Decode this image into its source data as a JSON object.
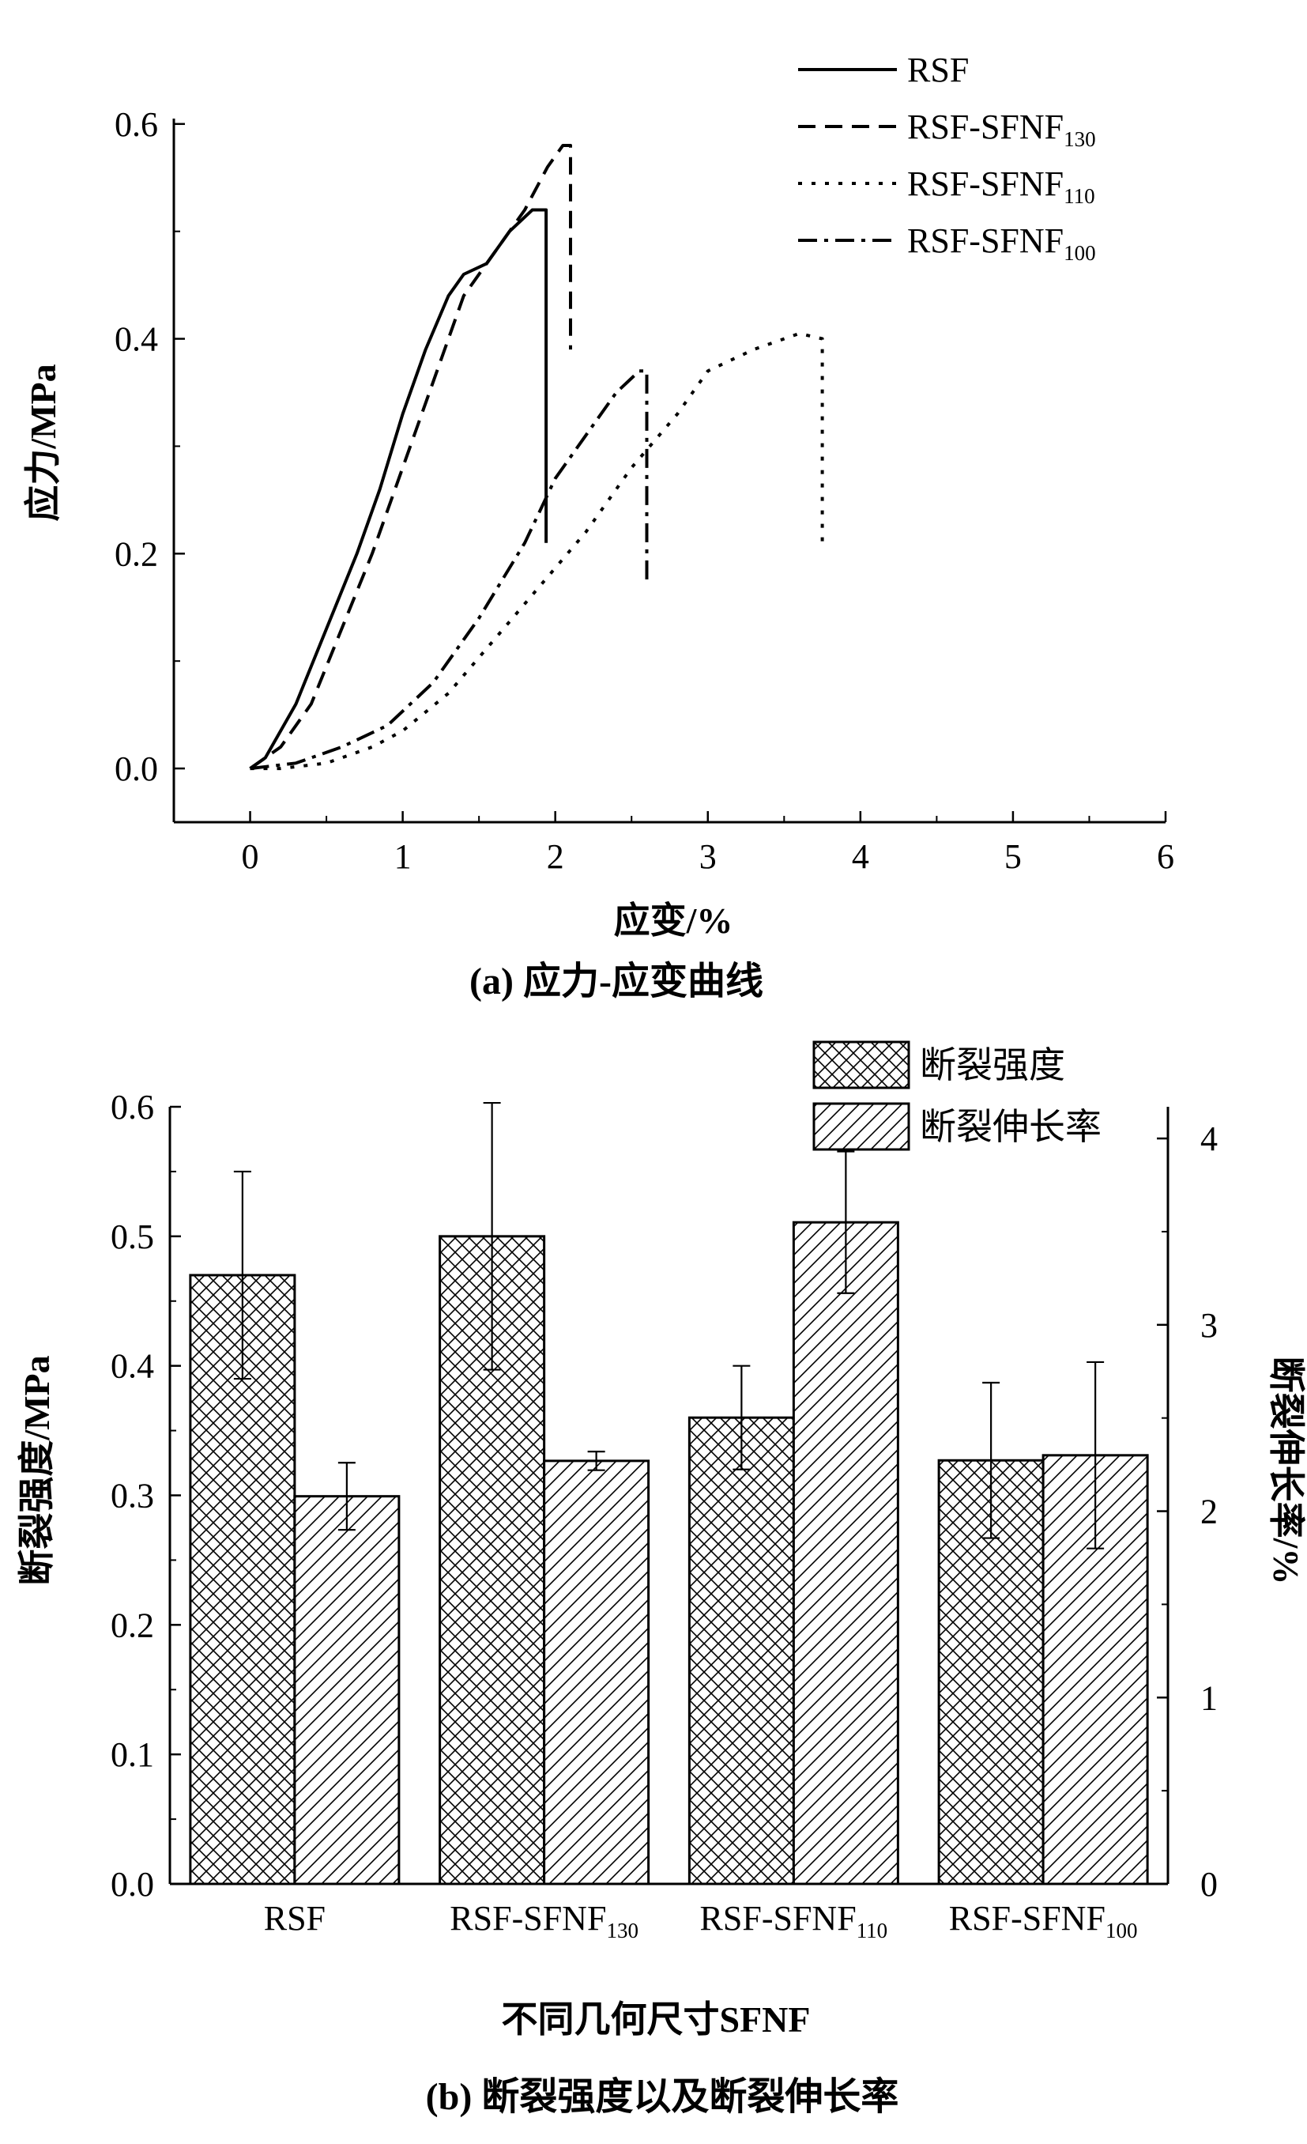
{
  "chart_data": [
    {
      "type": "line",
      "title": "(a)  应力-应变曲线",
      "xlabel": "应变/%",
      "ylabel": "应力/MPa",
      "xlim": [
        -0.5,
        6
      ],
      "ylim": [
        -0.05,
        0.605
      ],
      "xticks": [
        "0",
        "1",
        "2",
        "3",
        "4",
        "5",
        "6"
      ],
      "yticks": [
        "0.0",
        "0.2",
        "0.4",
        "0.6"
      ],
      "legend_position": "top-right",
      "series": [
        {
          "name": "RSF",
          "dash": "solid",
          "points": [
            [
              0,
              0
            ],
            [
              0.1,
              0.01
            ],
            [
              0.3,
              0.06
            ],
            [
              0.5,
              0.13
            ],
            [
              0.7,
              0.2
            ],
            [
              0.85,
              0.26
            ],
            [
              1.0,
              0.33
            ],
            [
              1.15,
              0.39
            ],
            [
              1.3,
              0.44
            ],
            [
              1.4,
              0.46
            ],
            [
              1.55,
              0.47
            ],
            [
              1.7,
              0.5
            ],
            [
              1.85,
              0.52
            ],
            [
              1.94,
              0.52
            ],
            [
              1.94,
              0.21
            ]
          ]
        },
        {
          "name": "RSF-SFNF",
          "sub": "130",
          "dash": "dashed",
          "points": [
            [
              0,
              0
            ],
            [
              0.2,
              0.02
            ],
            [
              0.4,
              0.06
            ],
            [
              0.6,
              0.13
            ],
            [
              0.8,
              0.2
            ],
            [
              1.0,
              0.28
            ],
            [
              1.2,
              0.36
            ],
            [
              1.4,
              0.44
            ],
            [
              1.6,
              0.48
            ],
            [
              1.8,
              0.52
            ],
            [
              1.95,
              0.56
            ],
            [
              2.05,
              0.58
            ],
            [
              2.1,
              0.58
            ],
            [
              2.1,
              0.39
            ]
          ]
        },
        {
          "name": "RSF-SFNF",
          "sub": "110",
          "dash": "dotted",
          "points": [
            [
              0,
              0
            ],
            [
              0.2,
              0
            ],
            [
              0.5,
              0.005
            ],
            [
              0.8,
              0.02
            ],
            [
              1.0,
              0.035
            ],
            [
              1.3,
              0.07
            ],
            [
              1.6,
              0.12
            ],
            [
              1.9,
              0.17
            ],
            [
              2.2,
              0.22
            ],
            [
              2.5,
              0.28
            ],
            [
              2.8,
              0.33
            ],
            [
              3.0,
              0.37
            ],
            [
              3.3,
              0.39
            ],
            [
              3.6,
              0.405
            ],
            [
              3.75,
              0.4
            ],
            [
              3.75,
              0.21
            ]
          ]
        },
        {
          "name": "RSF-SFNF",
          "sub": "100",
          "dash": "dashdot",
          "points": [
            [
              0,
              0
            ],
            [
              0.3,
              0.005
            ],
            [
              0.6,
              0.02
            ],
            [
              0.9,
              0.04
            ],
            [
              1.2,
              0.08
            ],
            [
              1.5,
              0.14
            ],
            [
              1.8,
              0.21
            ],
            [
              2.0,
              0.27
            ],
            [
              2.2,
              0.31
            ],
            [
              2.4,
              0.35
            ],
            [
              2.55,
              0.37
            ],
            [
              2.6,
              0.37
            ],
            [
              2.6,
              0.17
            ]
          ]
        }
      ]
    },
    {
      "type": "bar",
      "title": "(b)  断裂强度以及断裂伸长率",
      "xlabel": "不同几何尺寸SFNF",
      "ylabel": "断裂强度/MPa",
      "ylabel_right": "断裂伸长率/%",
      "ylim": [
        0,
        0.6
      ],
      "ylim_right": [
        0,
        4.17
      ],
      "yticks": [
        "0.0",
        "0.1",
        "0.2",
        "0.3",
        "0.4",
        "0.5",
        "0.6"
      ],
      "yticks_right": [
        "0",
        "1",
        "2",
        "3",
        "4"
      ],
      "legend_position": "top-right",
      "categories": [
        {
          "name": "RSF",
          "sub": ""
        },
        {
          "name": "RSF-SFNF",
          "sub": "130"
        },
        {
          "name": "RSF-SFNF",
          "sub": "110"
        },
        {
          "name": "RSF-SFNF",
          "sub": "100"
        }
      ],
      "series": [
        {
          "name": "断裂强度",
          "axis": "left",
          "pattern": "crosshatch",
          "values": [
            0.47,
            0.5,
            0.36,
            0.327
          ],
          "errors": [
            0.08,
            0.103,
            0.04,
            0.06
          ]
        },
        {
          "name": "断裂伸长率",
          "axis": "right",
          "pattern": "diagonal",
          "values": [
            2.08,
            2.27,
            3.55,
            2.3
          ],
          "errors": [
            0.18,
            0.05,
            0.38,
            0.5
          ]
        }
      ]
    }
  ]
}
